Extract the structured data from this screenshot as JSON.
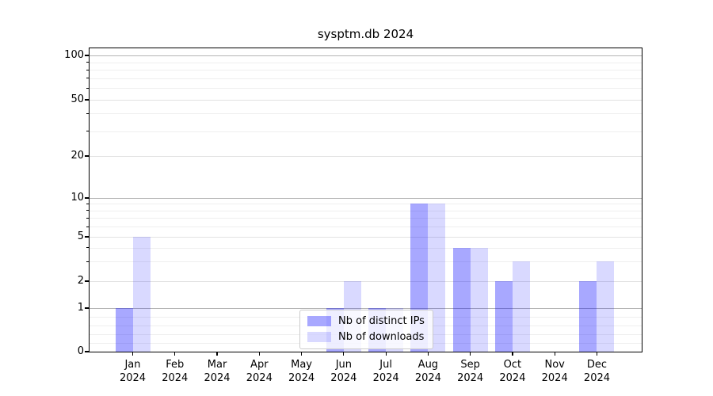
{
  "title": "sysptm.db 2024",
  "legend": {
    "items": [
      {
        "label": "Nb of distinct IPs",
        "color": "rgba(0,0,255,0.34)"
      },
      {
        "label": "Nb of downloads",
        "color": "rgba(0,0,255,0.15)"
      }
    ]
  },
  "chart_data": {
    "type": "bar",
    "title": "sysptm.db 2024",
    "categories": [
      "Jan 2024",
      "Feb 2024",
      "Mar 2024",
      "Apr 2024",
      "May 2024",
      "Jun 2024",
      "Jul 2024",
      "Aug 2024",
      "Sep 2024",
      "Oct 2024",
      "Nov 2024",
      "Dec 2024"
    ],
    "series": [
      {
        "name": "Nb of distinct IPs",
        "color": "rgba(0,0,255,0.34)",
        "values": [
          1,
          0,
          0,
          0,
          0,
          1,
          1,
          9,
          4,
          2,
          0,
          2
        ]
      },
      {
        "name": "Nb of downloads",
        "color": "rgba(0,0,255,0.15)",
        "values": [
          5,
          0,
          0,
          0,
          0,
          2,
          1,
          9,
          4,
          3,
          0,
          3
        ]
      }
    ],
    "xlabel": "",
    "ylabel": "",
    "y_axis": {
      "scale": "asinh-log",
      "ticks": [
        0,
        1,
        2,
        5,
        10,
        20,
        50,
        100
      ],
      "range": [
        0,
        100
      ]
    },
    "grid": "on",
    "legend_position": "lower center"
  }
}
